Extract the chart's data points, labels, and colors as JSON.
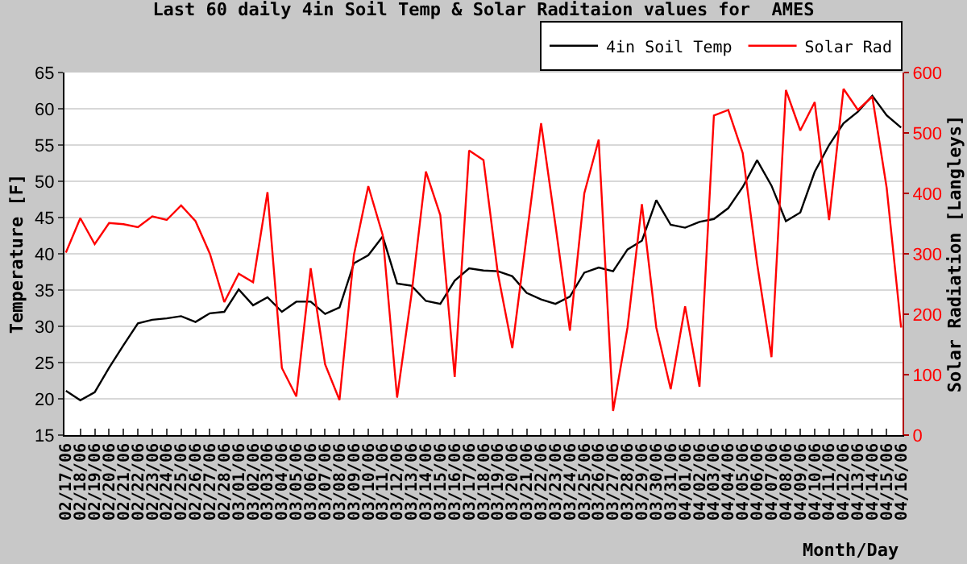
{
  "chart_data": {
    "type": "line",
    "title": "Last 60 daily 4in Soil Temp & Solar Raditaion values for  AMES",
    "xlabel": "Month/Day",
    "ylabel": "Temperature [F]",
    "y2label": "Solar Radiation [Langleys]",
    "categories": [
      "02/17/06",
      "02/18/06",
      "02/19/06",
      "02/20/06",
      "02/21/06",
      "02/22/06",
      "02/23/06",
      "02/24/06",
      "02/25/06",
      "02/26/06",
      "02/27/06",
      "02/28/06",
      "03/01/06",
      "03/02/06",
      "03/03/06",
      "03/04/06",
      "03/05/06",
      "03/06/06",
      "03/07/06",
      "03/08/06",
      "03/09/06",
      "03/10/06",
      "03/11/06",
      "03/12/06",
      "03/13/06",
      "03/14/06",
      "03/15/06",
      "03/16/06",
      "03/17/06",
      "03/18/06",
      "03/19/06",
      "03/20/06",
      "03/21/06",
      "03/22/06",
      "03/23/06",
      "03/24/06",
      "03/25/06",
      "03/26/06",
      "03/27/06",
      "03/28/06",
      "03/29/06",
      "03/30/06",
      "03/31/06",
      "04/01/06",
      "04/02/06",
      "04/03/06",
      "04/04/06",
      "04/05/06",
      "04/06/06",
      "04/07/06",
      "04/08/06",
      "04/09/06",
      "04/10/06",
      "04/11/06",
      "04/12/06",
      "04/13/06",
      "04/14/06",
      "04/15/06",
      "04/16/06"
    ],
    "series": [
      {
        "name": "4in Soil Temp",
        "color": "#000000",
        "values": [
          21.1,
          19.8,
          20.9,
          24.3,
          27.4,
          30.4,
          30.9,
          31.1,
          31.4,
          30.6,
          31.8,
          32.0,
          35.1,
          32.9,
          34.0,
          32.0,
          33.4,
          33.4,
          31.7,
          32.6,
          38.7,
          39.8,
          42.4,
          35.9,
          35.6,
          33.5,
          33.1,
          36.3,
          38.0,
          37.7,
          37.6,
          36.9,
          34.6,
          33.7,
          33.1,
          34.1,
          37.4,
          38.1,
          37.6,
          40.6,
          41.8,
          47.4,
          44.0,
          43.6,
          44.4,
          44.8,
          46.3,
          49.2,
          52.9,
          49.4,
          44.5,
          45.7,
          51.3,
          55.0,
          58.0,
          59.6,
          61.8,
          59.1,
          57.4
        ]
      },
      {
        "name": "Solar Rad",
        "color": "#ff0000",
        "axis": "y2",
        "values": [
          302,
          359,
          316,
          351,
          349,
          344,
          362,
          356,
          380,
          354,
          300,
          220,
          267,
          253,
          402,
          111,
          64,
          276,
          117,
          58,
          298,
          412,
          331,
          62,
          233,
          436,
          364,
          96,
          471,
          455,
          267,
          144,
          330,
          516,
          347,
          173,
          400,
          489,
          40,
          178,
          382,
          178,
          76,
          213,
          80,
          529,
          538,
          467,
          284,
          129,
          571,
          504,
          551,
          356,
          573,
          538,
          560,
          409,
          178
        ]
      }
    ],
    "ylim": [
      15,
      65
    ],
    "yticks": [
      15,
      20,
      25,
      30,
      35,
      40,
      45,
      50,
      55,
      60,
      65
    ],
    "y2lim": [
      0,
      600
    ],
    "y2ticks": [
      0,
      100,
      200,
      300,
      400,
      500,
      600
    ],
    "grid": "y",
    "legend": "top right",
    "marker": "none",
    "line_style": "solid"
  }
}
